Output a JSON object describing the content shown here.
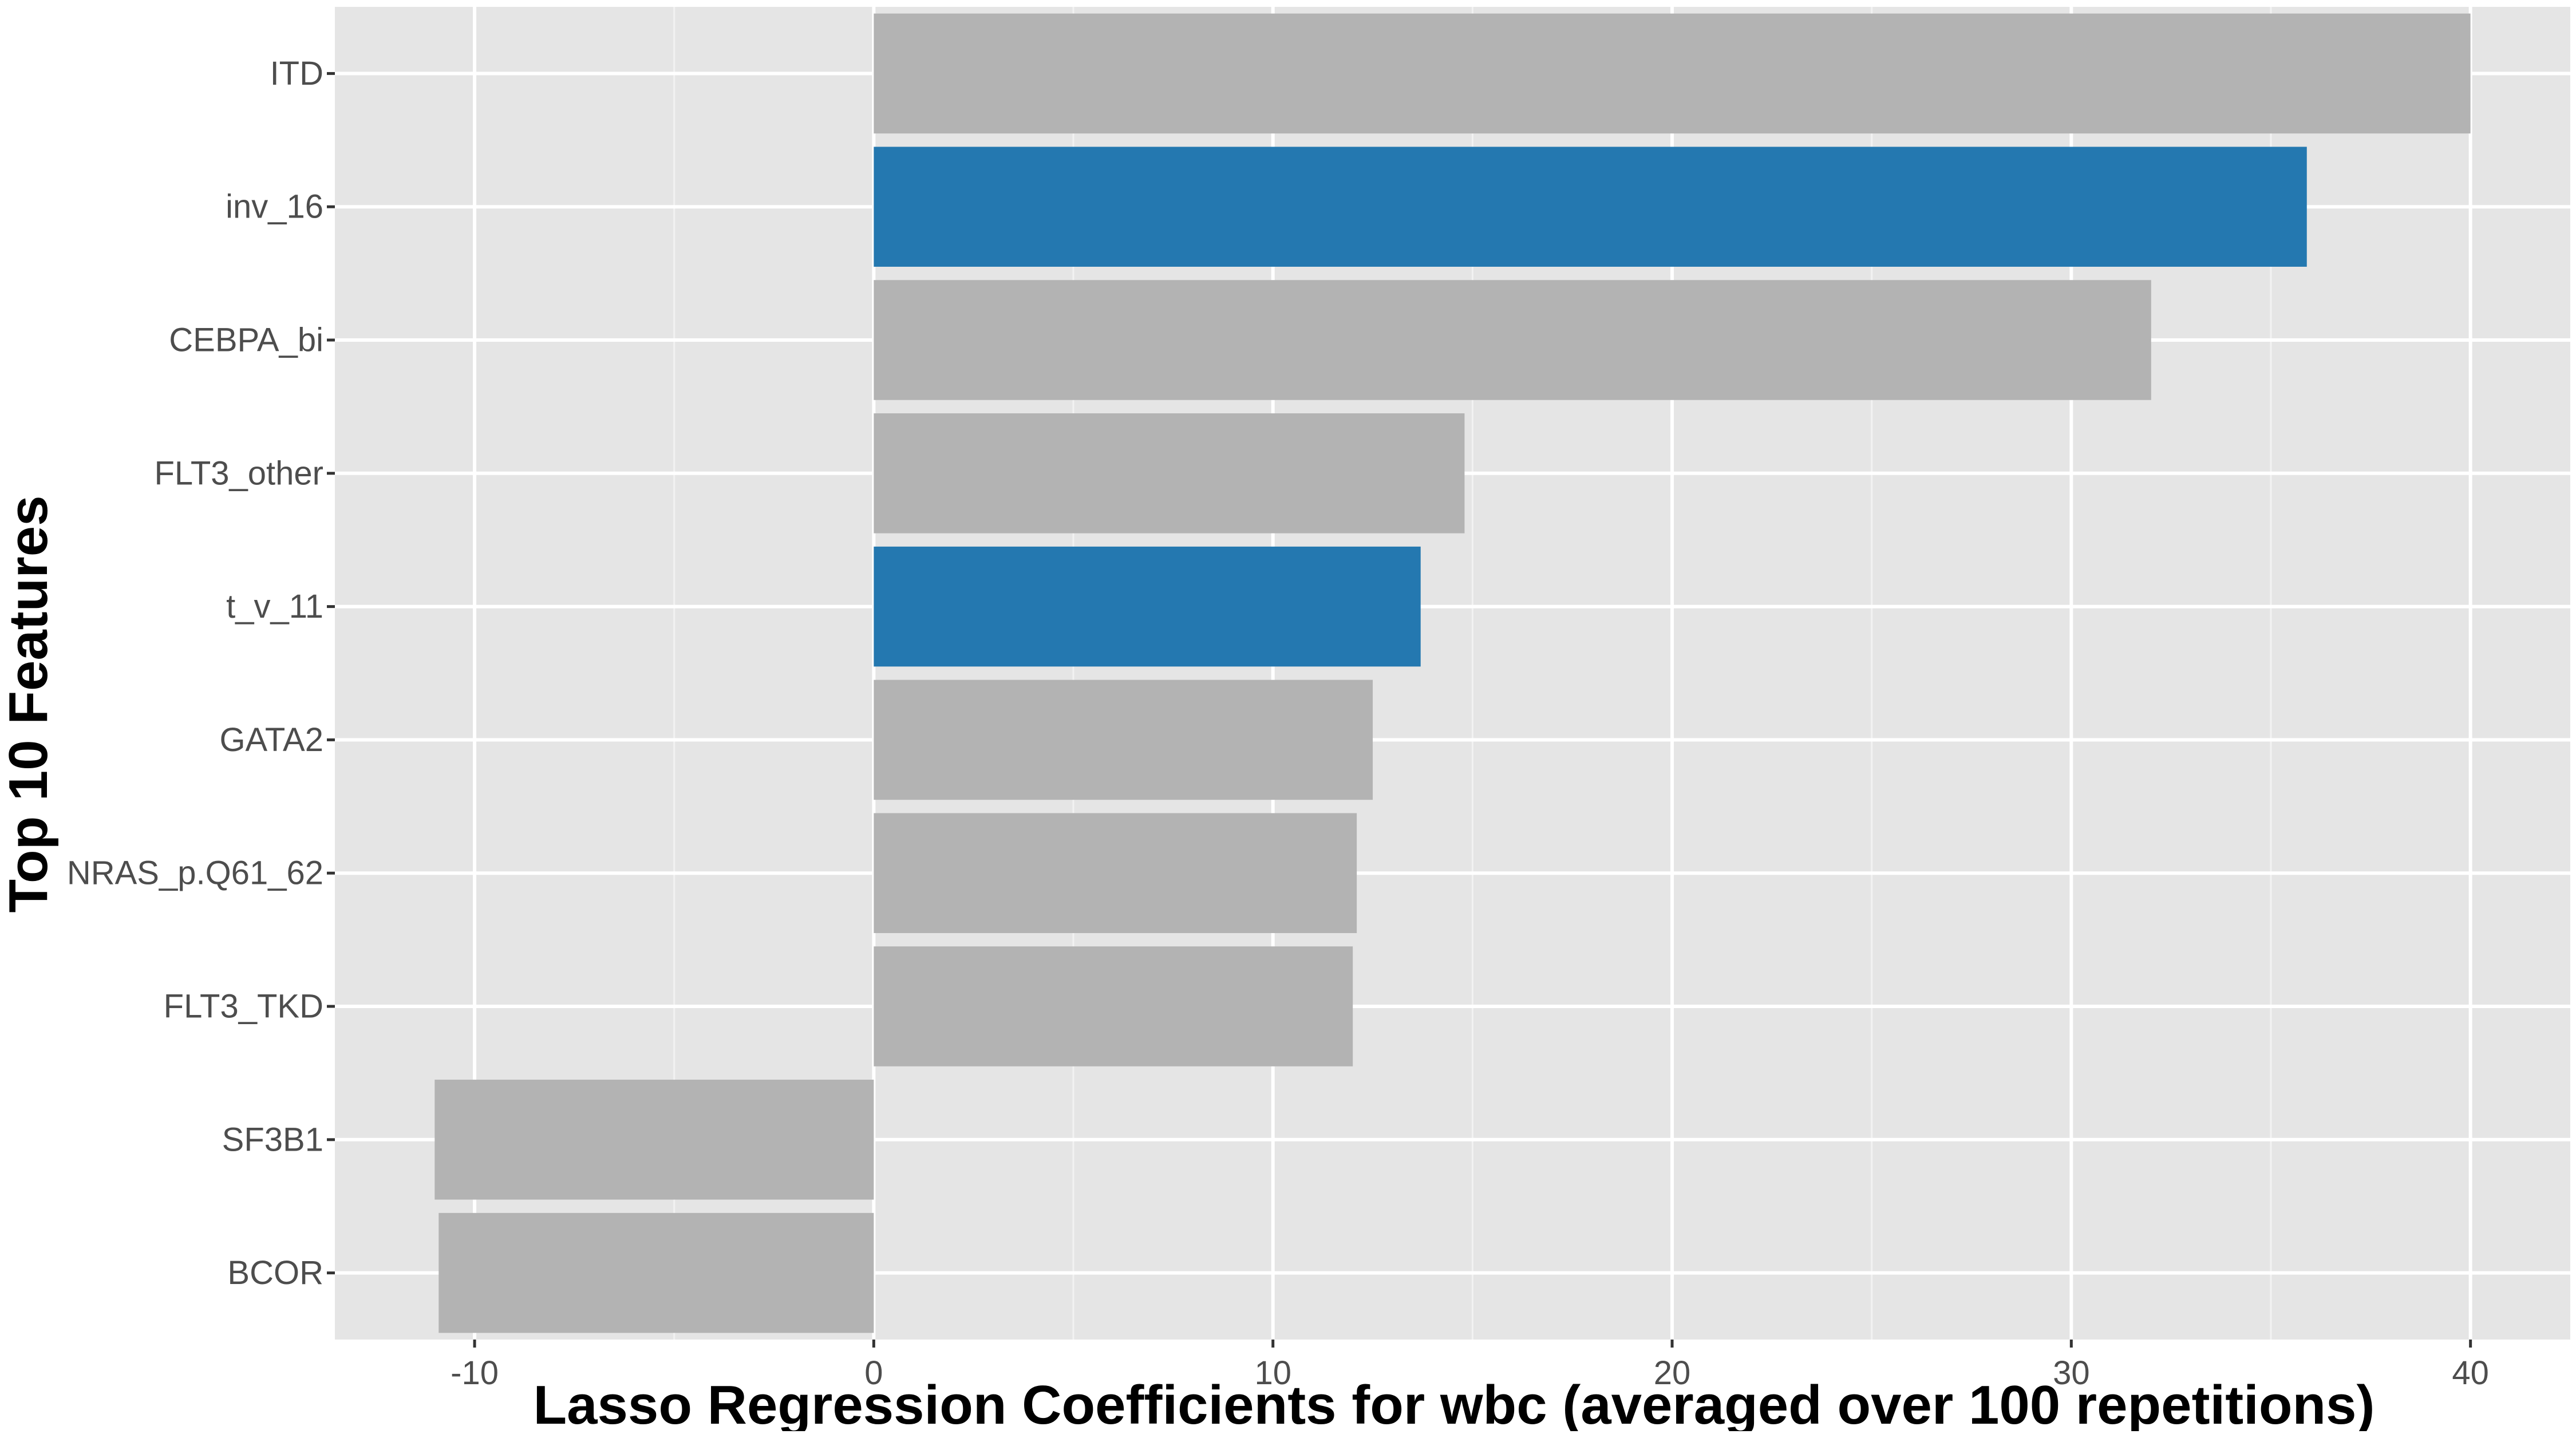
{
  "chart_data": {
    "type": "bar",
    "orientation": "horizontal",
    "title": "",
    "xlabel": "Lasso Regression Coefficients for wbc (averaged over 100 repetitions)",
    "ylabel": "Top 10 Features",
    "xlim": [
      -13.5,
      42.5
    ],
    "x_ticks": [
      -10,
      0,
      10,
      20,
      30,
      40
    ],
    "x_tick_labels": [
      "-10",
      "0",
      "10",
      "20",
      "30",
      "40"
    ],
    "grid": true,
    "legend": "none",
    "categories": [
      "ITD",
      "inv_16",
      "CEBPA_bi",
      "FLT3_other",
      "t_v_11",
      "GATA2",
      "NRAS_p.Q61_62",
      "FLT3_TKD",
      "SF3B1",
      "BCOR"
    ],
    "values": [
      40.0,
      35.9,
      32.0,
      14.8,
      13.7,
      12.5,
      12.1,
      12.0,
      -11.0,
      -10.9
    ],
    "highlighted": [
      "inv_16",
      "t_v_11"
    ],
    "colors": {
      "default": "#b3b3b3",
      "highlight": "#2478b0",
      "panel": "#e5e5e5",
      "grid_major": "#ffffff",
      "grid_minor": "#f2f2f2"
    }
  }
}
